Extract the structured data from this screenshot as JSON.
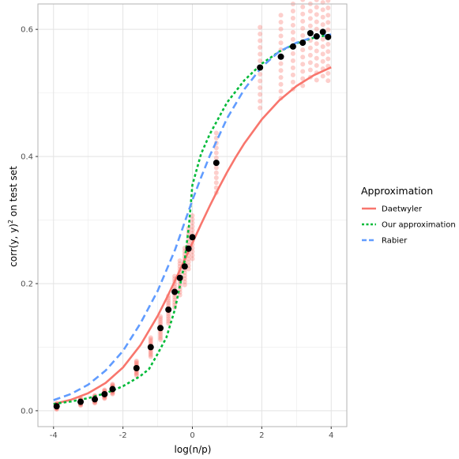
{
  "chart_data": {
    "type": "scatter",
    "xlabel": "log(n/p)",
    "ylabel_prefix": "corr(",
    "ylabel_hat": "y",
    "ylabel_mid": ", y)",
    "ylabel_sup": "2",
    "ylabel_suffix": " on test set",
    "xlim": [
      -4.45,
      4.45
    ],
    "ylim": [
      -0.025,
      0.64
    ],
    "x_ticks": [
      -4,
      -2,
      0,
      2,
      4
    ],
    "x_tick_labels": [
      "-4",
      "-2",
      "0",
      "2",
      "4"
    ],
    "y_ticks": [
      0.0,
      0.2,
      0.4,
      0.6
    ],
    "y_tick_labels": [
      "0.0",
      "0.2",
      "0.4",
      "0.6"
    ],
    "grid": true,
    "legend_position": "right",
    "legend_title": "Approximation",
    "series": [
      {
        "name": "Daetwyler",
        "color": "#F8766D",
        "linestyle": "solid",
        "x": [
          -4.0,
          -3.5,
          -3.0,
          -2.5,
          -2.0,
          -1.5,
          -1.0,
          -0.75,
          -0.5,
          -0.25,
          0.0,
          0.25,
          0.5,
          0.75,
          1.0,
          1.25,
          1.5,
          2.0,
          2.5,
          3.0,
          3.5,
          4.0
        ],
        "y": [
          0.0106,
          0.0172,
          0.0276,
          0.0437,
          0.068,
          0.1029,
          0.1491,
          0.1761,
          0.2046,
          0.2342,
          0.2639,
          0.2934,
          0.3221,
          0.3494,
          0.3752,
          0.399,
          0.4208,
          0.4583,
          0.4881,
          0.5109,
          0.5279,
          0.5403
        ]
      },
      {
        "name": "Our approximation",
        "color": "#00BA38",
        "linestyle": "dotted",
        "x": [
          -4.0,
          -3.5,
          -3.0,
          -2.5,
          -2.0,
          -1.5,
          -1.25,
          -1.0,
          -0.75,
          -0.5,
          -0.25,
          -0.1,
          0.0,
          0.25,
          0.5,
          1.0,
          1.5,
          2.0,
          2.5,
          3.0,
          3.5,
          4.0
        ],
        "y": [
          0.0106,
          0.0145,
          0.0198,
          0.0275,
          0.0385,
          0.0545,
          0.0655,
          0.0895,
          0.115,
          0.16,
          0.225,
          0.29,
          0.355,
          0.404,
          0.435,
          0.485,
          0.52,
          0.546,
          0.565,
          0.578,
          0.587,
          0.592
        ]
      },
      {
        "name": "Rabier",
        "color": "#619CFF",
        "linestyle": "dashed",
        "x": [
          -4.0,
          -3.5,
          -3.0,
          -2.5,
          -2.0,
          -1.5,
          -1.0,
          -0.5,
          0.0,
          0.25,
          0.5,
          1.0,
          1.5,
          2.0,
          2.5,
          3.0,
          3.5,
          4.0
        ],
        "y": [
          0.0166,
          0.0263,
          0.041,
          0.0632,
          0.0939,
          0.1371,
          0.1885,
          0.2531,
          0.3312,
          0.367,
          0.401,
          0.46,
          0.506,
          0.541,
          0.565,
          0.579,
          0.588,
          0.592
        ]
      }
    ],
    "points": {
      "x": [
        -3.91,
        -3.22,
        -2.81,
        -2.53,
        -2.3,
        -1.61,
        -1.2,
        -0.92,
        -0.69,
        -0.51,
        -0.36,
        -0.22,
        -0.11,
        0.0,
        0.69,
        1.95,
        2.55,
        2.9,
        3.18,
        3.4,
        3.58,
        3.76,
        3.91
      ],
      "y": [
        0.007,
        0.014,
        0.018,
        0.026,
        0.034,
        0.067,
        0.1,
        0.13,
        0.159,
        0.187,
        0.209,
        0.227,
        0.255,
        0.273,
        0.39,
        0.54,
        0.557,
        0.573,
        0.579,
        0.594,
        0.589,
        0.596,
        0.588
      ],
      "point_color": "#000000",
      "replicate_color": "#F8766D"
    }
  }
}
